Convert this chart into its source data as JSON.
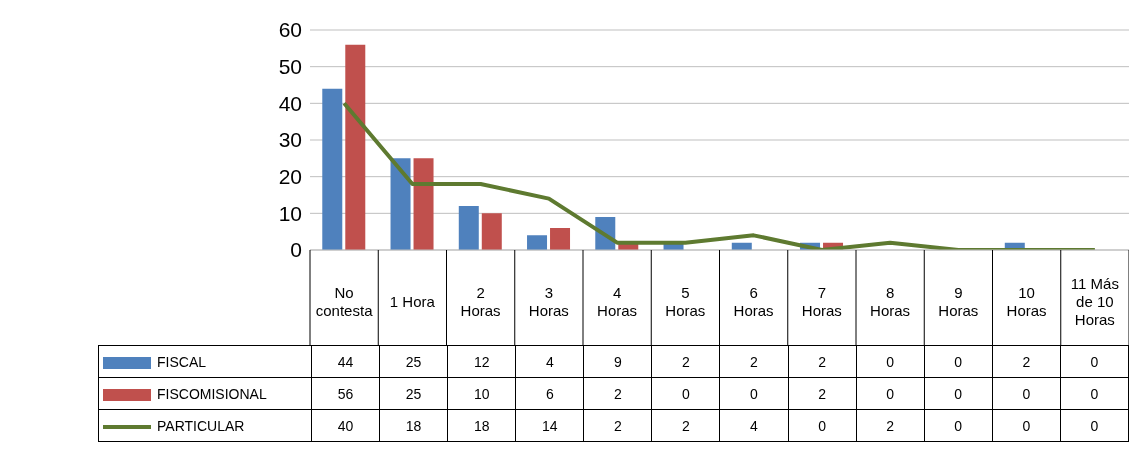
{
  "chart_data": {
    "type": "bar",
    "categories": [
      "No contesta",
      "1 Hora",
      "2 Horas",
      "3 Horas",
      "4 Horas",
      "5 Horas",
      "6 Horas",
      "7 Horas",
      "8 Horas",
      "9 Horas",
      "10 Horas",
      "11 Más de 10 Horas"
    ],
    "series": [
      {
        "name": "FISCAL",
        "color": "#4f81bd",
        "values": [
          44,
          25,
          12,
          4,
          9,
          2,
          2,
          2,
          0,
          0,
          2,
          0
        ]
      },
      {
        "name": "FISCOMISIONAL",
        "color": "#c0504d",
        "values": [
          56,
          25,
          10,
          6,
          2,
          0,
          0,
          2,
          0,
          0,
          0,
          0
        ]
      },
      {
        "name": "PARTICULAR",
        "type": "line",
        "color": "#5e7a30",
        "values": [
          40,
          18,
          18,
          14,
          2,
          2,
          4,
          0,
          2,
          0,
          0,
          0
        ]
      }
    ],
    "ylim": [
      0,
      60
    ],
    "yticks": [
      0,
      10,
      20,
      30,
      40,
      50,
      60
    ],
    "grid": "y",
    "legend": "bottom",
    "data_labels": true,
    "marker": "none",
    "line_style": "solid"
  }
}
